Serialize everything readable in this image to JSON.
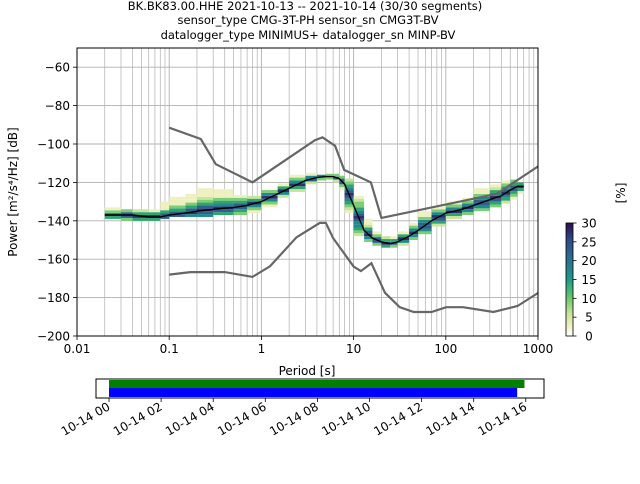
{
  "title": {
    "line1": "BK.BK83.00.HHE   2021-10-13 -- 2021-10-14  (30/30 segments)",
    "line2": "sensor_type CMG-3T-PH sensor_sn CMG3T-BV",
    "line3": "datalogger_type MINIMUS+ datalogger_sn MINP-BV"
  },
  "colors": {
    "nlnm_nhnm": "#666666",
    "mode_line": "#000000",
    "coverage_data": "#008000",
    "coverage_gaps": "#0000ff",
    "grid": "#b0b0b0"
  },
  "chart_data": [
    {
      "type": "heatmap",
      "xlabel": "Period [s]",
      "ylabel": "Power [m²/s⁴/Hz] [dB]",
      "xscale": "log",
      "xlim": [
        0.01,
        1000
      ],
      "ylim": [
        -200,
        -50
      ],
      "x_ticks": [
        0.01,
        0.1,
        1,
        10,
        100,
        1000
      ],
      "x_tick_labels": [
        "0.01",
        "0.1",
        "1",
        "10",
        "100",
        "1000"
      ],
      "y_ticks": [
        -200,
        -180,
        -160,
        -140,
        -120,
        -100,
        -80,
        -60
      ],
      "y_tick_labels": [
        "−200",
        "−180",
        "−160",
        "−140",
        "−120",
        "−100",
        "−80",
        "−60"
      ],
      "grid": true,
      "colorbar": {
        "label": "[%]",
        "range": [
          0,
          30
        ],
        "ticks": [
          0,
          5,
          10,
          15,
          20,
          25,
          30
        ],
        "tick_labels": [
          "0",
          "5",
          "10",
          "15",
          "20",
          "25",
          "30"
        ],
        "colormap": "pqlx"
      },
      "nhnm": {
        "x": [
          0.1,
          0.22,
          0.32,
          0.8,
          3.8,
          4.6,
          6.3,
          7.9,
          15.4,
          20,
          354.8,
          10000
        ],
        "y": [
          -91.5,
          -97.4,
          -110.5,
          -120,
          -98,
          -96.5,
          -101,
          -113.5,
          -120,
          -138.5,
          -126,
          -80
        ]
      },
      "nlnm": {
        "x": [
          0.1,
          0.17,
          0.4,
          0.8,
          1.24,
          2.4,
          4.3,
          5,
          6,
          10,
          12,
          15.6,
          21.9,
          31.6,
          45,
          70,
          101,
          154,
          328,
          600,
          1000
        ],
        "y": [
          -168,
          -166.7,
          -166.7,
          -169.2,
          -163.7,
          -148.6,
          -141.1,
          -141.1,
          -149,
          -163.8,
          -166.2,
          -162.1,
          -177.5,
          -185,
          -187.5,
          -187.5,
          -185,
          -185,
          -187.5,
          -184.4,
          -177.6
        ]
      },
      "mode": {
        "x": [
          0.02,
          0.03,
          0.04,
          0.06,
          0.08,
          0.1,
          0.15,
          0.2,
          0.3,
          0.5,
          0.7,
          1,
          1.5,
          2,
          3,
          4,
          5,
          6,
          7,
          8,
          10,
          13,
          16,
          20,
          25,
          30,
          40,
          50,
          70,
          100,
          150,
          200,
          300,
          400,
          500,
          600,
          700
        ],
        "y": [
          -137,
          -137,
          -137,
          -138,
          -138,
          -137,
          -136,
          -135,
          -134,
          -133,
          -132,
          -130,
          -126,
          -123,
          -119,
          -117.5,
          -117,
          -117,
          -118,
          -121,
          -132,
          -145,
          -149,
          -151,
          -152,
          -151,
          -148,
          -145,
          -140,
          -136,
          -134,
          -132,
          -129,
          -127,
          -124,
          -122,
          -122
        ]
      },
      "density_band": {
        "x": [
          0.02,
          0.03,
          0.04,
          0.06,
          0.08,
          0.1,
          0.15,
          0.2,
          0.3,
          0.5,
          0.7,
          1,
          1.5,
          2,
          3,
          4,
          5,
          6,
          7,
          8,
          10,
          13,
          16,
          20,
          25,
          30,
          40,
          50,
          70,
          100,
          150,
          200,
          300,
          400,
          500,
          600,
          700
        ],
        "y_low": [
          -139,
          -139,
          -140,
          -140,
          -139,
          -138,
          -138,
          -138,
          -137,
          -137,
          -136,
          -133,
          -128,
          -125,
          -121,
          -119,
          -118,
          -118.5,
          -120,
          -124,
          -136,
          -148,
          -151,
          -153,
          -154,
          -153,
          -150,
          -147,
          -143,
          -139,
          -137,
          -135,
          -133,
          -131,
          -129,
          -126,
          -124
        ],
        "y_high": [
          -136,
          -134,
          -134,
          -136,
          -134,
          -131,
          -128,
          -126,
          -124,
          -127,
          -128,
          -128,
          -124,
          -121,
          -117,
          -116,
          -116,
          -116,
          -117,
          -118,
          -127,
          -140,
          -146,
          -148,
          -150,
          -149,
          -146,
          -141,
          -136,
          -133,
          -131,
          -128,
          -124,
          -121,
          -119,
          -120,
          -120
        ]
      }
    },
    {
      "type": "timeline",
      "x_ticks": [
        "10-14 00",
        "10-14 02",
        "10-14 04",
        "10-14 06",
        "10-14 08",
        "10-14 10",
        "10-14 12",
        "10-14 14",
        "10-14 16"
      ],
      "xlim_hours": [
        -0.5,
        16.7
      ],
      "data_coverage": [
        [
          0,
          15.95
        ]
      ],
      "psd_segments": [
        [
          0,
          15.67
        ]
      ]
    }
  ]
}
